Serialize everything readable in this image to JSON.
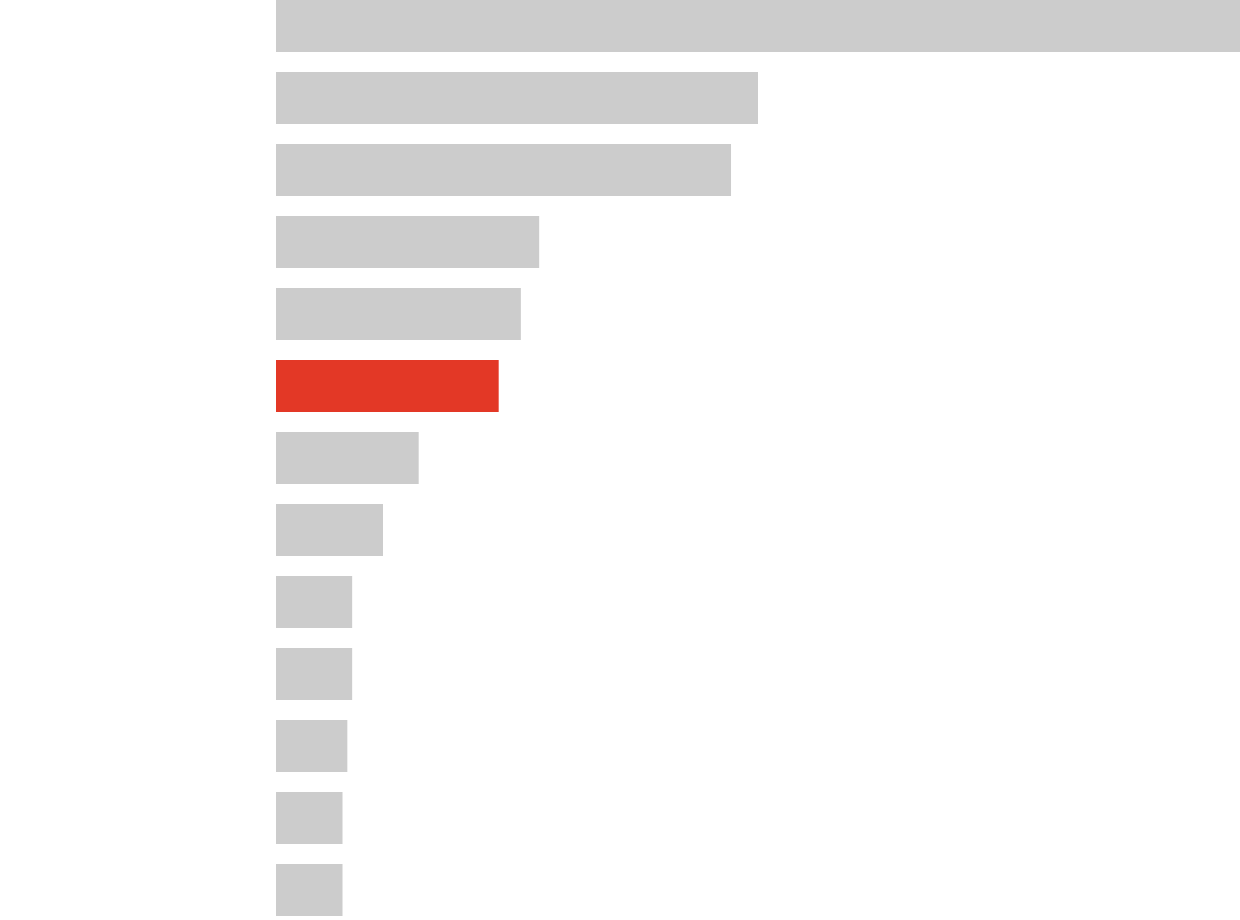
{
  "chart_data": {
    "type": "bar",
    "orientation": "horizontal",
    "title": "",
    "xlabel": "",
    "ylabel": "",
    "grid": false,
    "legend": "none",
    "values": [
      100,
      50,
      47.2,
      27.3,
      25.4,
      23.1,
      14.8,
      11.1,
      7.9,
      7.9,
      7.4,
      6.9,
      6.9
    ],
    "highlight_index": 5,
    "xlim": [
      0,
      100
    ],
    "colors": {
      "default": "#cccccc",
      "highlight": "#e33826",
      "background": "#ffffff"
    }
  }
}
